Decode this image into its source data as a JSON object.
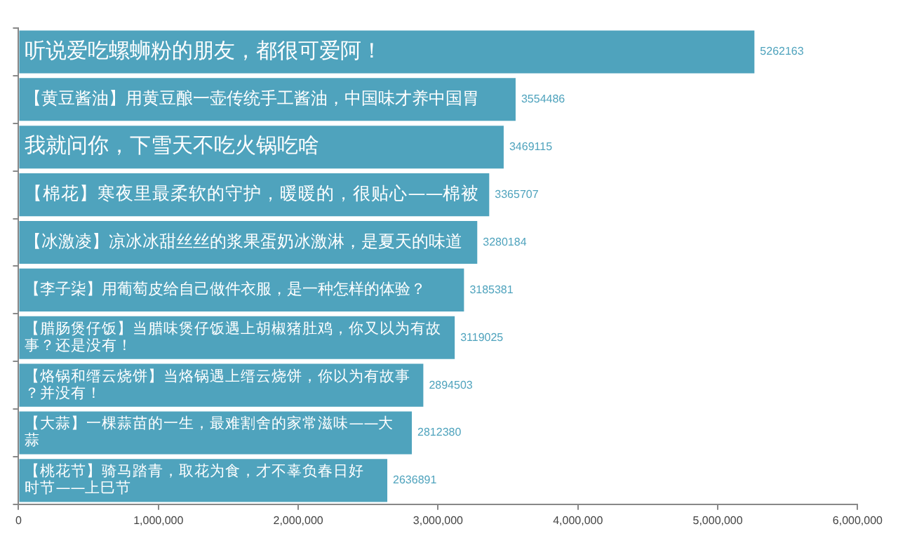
{
  "chart_data": {
    "type": "bar",
    "orientation": "horizontal",
    "categories": [
      "听说爱吃螺蛳粉的朋友，都很可爱阿！",
      "【黄豆酱油】用黄豆酿一壶传统手工酱油，中国味才养中国胃",
      "我就问你，下雪天不吃火锅吃啥",
      "【棉花】寒夜里最柔软的守护，暖暖的，很贴心——棉被",
      "【冰激凌】凉冰冰甜丝丝的浆果蛋奶冰激淋，是夏天的味道",
      "【李子柒】用葡萄皮给自己做件衣服，是一种怎样的体验？",
      "【腊肠煲仔饭】当腊味煲仔饭遇上胡椒猪肚鸡，你又以为有故事？还是没有！",
      "【烙锅和缙云烧饼】当烙锅遇上缙云烧饼，你以为有故事？并没有！",
      "【大蒜】一棵蒜苗的一生，最难割舍的家常滋味——大蒜",
      "【桃花节】骑马踏青，取花为食，才不辜负春日好时节——上巳节"
    ],
    "values": [
      5262163,
      3554486,
      3469115,
      3365707,
      3280184,
      3185381,
      3119025,
      2894503,
      2812380,
      2636891
    ],
    "color": "#4fa3bd",
    "data_labels": true,
    "xlim": [
      0,
      6000000
    ],
    "xticks": [
      {
        "value": 0,
        "label": "0"
      },
      {
        "value": 1000000,
        "label": "1,000,000"
      },
      {
        "value": 2000000,
        "label": "2,000,000"
      },
      {
        "value": 3000000,
        "label": "3,000,000"
      },
      {
        "value": 4000000,
        "label": "4,000,000"
      },
      {
        "value": 5000000,
        "label": "5,000,000"
      },
      {
        "value": 6000000,
        "label": "6,000,000"
      }
    ],
    "grid": false,
    "tick_labels": "x"
  }
}
